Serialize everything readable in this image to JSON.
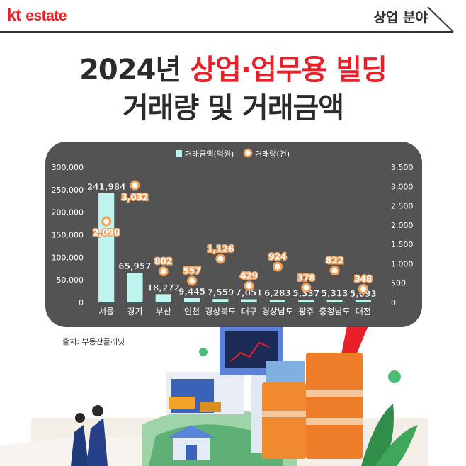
{
  "header": {
    "logo_kt": "kt",
    "logo_estate": "estate",
    "section_label": "상업 분야"
  },
  "title": {
    "line1_prefix": "2024년 ",
    "line1_highlight": "상업·업무용 빌딩",
    "line2": "거래량 및 거래금액"
  },
  "source": "출처: 부동산플래닛",
  "colors": {
    "bar": "#bdf5ee",
    "line_marker": "#f5a05a",
    "accent_red": "#e8202a",
    "panel": "#474747"
  },
  "chart_data": {
    "type": "bar",
    "categories": [
      "서울",
      "경기",
      "부산",
      "인천",
      "경상북도",
      "대구",
      "경상남도",
      "광주",
      "충청남도",
      "대전"
    ],
    "series": [
      {
        "name": "거래금액(억원)",
        "type": "bar",
        "axis": "left",
        "values": [
          241984,
          65957,
          18272,
          9445,
          7559,
          7051,
          6283,
          5337,
          5313,
          5093
        ]
      },
      {
        "name": "거래량(건)",
        "type": "scatter",
        "axis": "right",
        "values": [
          2098,
          3032,
          802,
          557,
          1126,
          429,
          924,
          378,
          822,
          348
        ]
      }
    ],
    "value_labels": {
      "bar": [
        "241,984",
        "65,957",
        "18,272",
        "9,445",
        "7,559",
        "7,051",
        "6,283",
        "5,337",
        "5,313",
        "5,093"
      ],
      "scatter": [
        "2,098",
        "3,032",
        "802",
        "557",
        "1,126",
        "429",
        "924",
        "378",
        "822",
        "348"
      ]
    },
    "left_axis": {
      "ylim": [
        0,
        300000
      ],
      "ticks": [
        "0",
        "50,000",
        "100,000",
        "150,000",
        "200,000",
        "250,000",
        "300,000"
      ]
    },
    "right_axis": {
      "ylim": [
        0,
        3500
      ],
      "ticks": [
        "0",
        "500",
        "1,000",
        "1,500",
        "2,000",
        "2,500",
        "3,000",
        "3,500"
      ]
    },
    "legend_position": "top-center",
    "grid": false
  }
}
